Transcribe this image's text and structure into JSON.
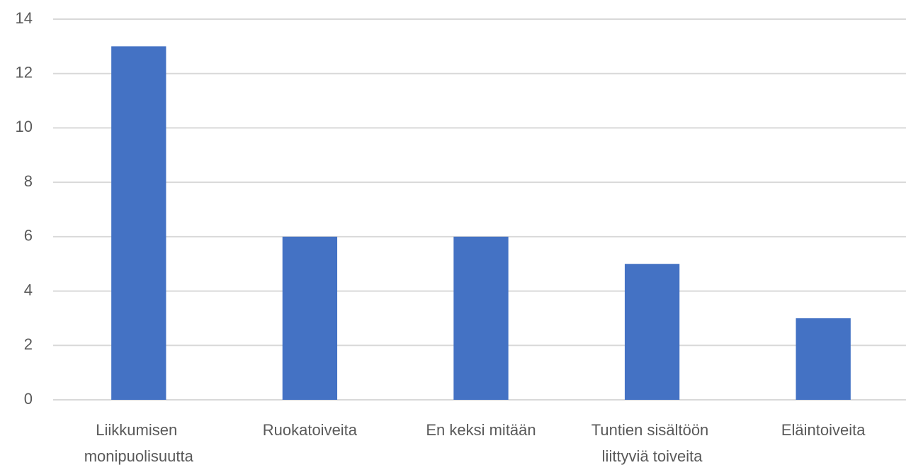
{
  "chart_data": {
    "type": "bar",
    "categories": [
      "Liikkumisen monipuolisuutta",
      "Ruokatoiveita",
      "En keksi mitään",
      "Tuntien sisältöön liittyviä toiveita",
      "Eläintoiveita"
    ],
    "values": [
      13,
      6,
      6,
      5,
      3
    ],
    "color": "#4472c4",
    "ylim": [
      0,
      14
    ],
    "yticks": [
      0,
      2,
      4,
      6,
      8,
      10,
      12,
      14
    ],
    "grid": true
  }
}
